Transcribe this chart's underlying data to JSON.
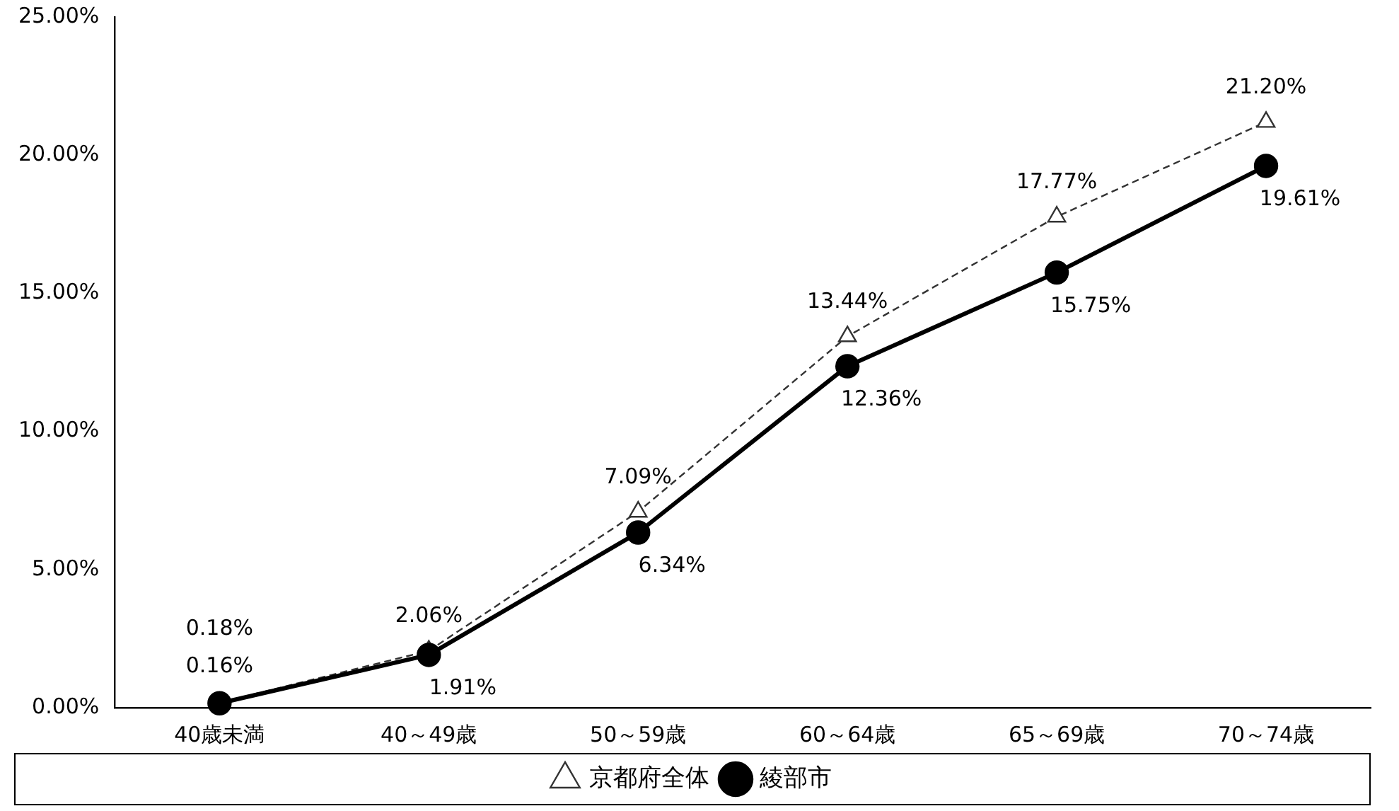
{
  "chart_data": {
    "type": "line",
    "categories": [
      "40歳未満",
      "40～49歳",
      "50～59歳",
      "60～64歳",
      "65～69歳",
      "70～74歳"
    ],
    "series": [
      {
        "name": "京都府全体",
        "color": "#333333",
        "marker": "triangle",
        "line_style": "dashed",
        "values": [
          0.18,
          2.06,
          7.09,
          13.44,
          17.77,
          21.2
        ],
        "value_labels": [
          "0.18%",
          "2.06%",
          "7.09%",
          "13.44%",
          "17.77%",
          "21.20%"
        ]
      },
      {
        "name": "綾部市",
        "color": "#000000",
        "marker": "circle",
        "line_style": "solid",
        "values": [
          0.16,
          1.91,
          6.34,
          12.36,
          15.75,
          19.61
        ],
        "value_labels": [
          "0.16%",
          "1.91%",
          "6.34%",
          "12.36%",
          "15.75%",
          "19.61%"
        ]
      }
    ],
    "ylim": [
      0,
      25
    ],
    "yticks": [
      {
        "value": 0,
        "label": "0.00%"
      },
      {
        "value": 5,
        "label": "5.00%"
      },
      {
        "value": 10,
        "label": "10.00%"
      },
      {
        "value": 15,
        "label": "15.00%"
      },
      {
        "value": 20,
        "label": "20.00%"
      },
      {
        "value": 25,
        "label": "25.00%"
      }
    ],
    "grid": false,
    "legend": "bottom"
  }
}
